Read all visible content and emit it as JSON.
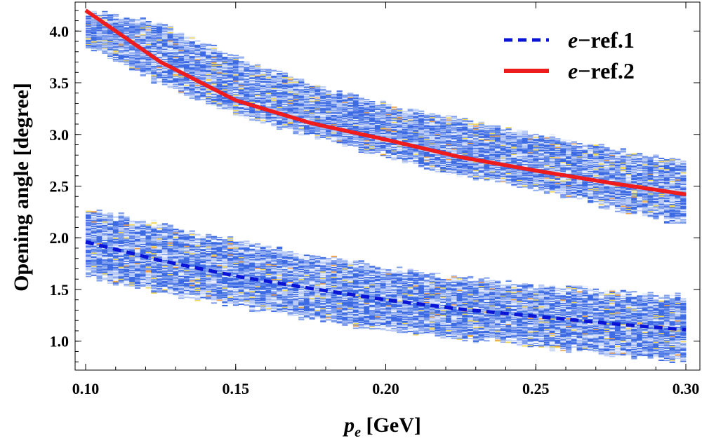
{
  "chart_data": {
    "type": "scatter",
    "title": "",
    "xlabel_main": "p",
    "xlabel_sub": "e",
    "xlabel_unit": " [GeV]",
    "ylabel": "Opening angle [degree]",
    "xlim": [
      0.1,
      0.3
    ],
    "ylim": [
      0.72,
      4.28
    ],
    "x_ticks": [
      0.1,
      0.15,
      0.2,
      0.25,
      0.3
    ],
    "x_tick_labels": [
      "0.10",
      "0.15",
      "0.20",
      "0.25",
      "0.30"
    ],
    "y_ticks": [
      1.0,
      1.5,
      2.0,
      2.5,
      3.0,
      3.5,
      4.0
    ],
    "y_tick_labels": [
      "1.0",
      "1.5",
      "2.0",
      "2.5",
      "3.0",
      "3.5",
      "4.0"
    ],
    "legend_position": "top-right",
    "bands": [
      {
        "name": "band-lower",
        "x": [
          0.1,
          0.125,
          0.15,
          0.175,
          0.2,
          0.225,
          0.25,
          0.275,
          0.3
        ],
        "lower": [
          1.62,
          1.47,
          1.34,
          1.21,
          1.1,
          1.02,
          0.94,
          0.87,
          0.8
        ],
        "upper": [
          2.3,
          2.14,
          1.98,
          1.84,
          1.72,
          1.62,
          1.55,
          1.49,
          1.44
        ]
      },
      {
        "name": "band-upper",
        "x": [
          0.1,
          0.125,
          0.15,
          0.175,
          0.2,
          0.225,
          0.25,
          0.275,
          0.3
        ],
        "lower": [
          3.86,
          3.48,
          3.2,
          2.98,
          2.78,
          2.6,
          2.45,
          2.29,
          2.12
        ],
        "upper": [
          4.2,
          4.08,
          3.75,
          3.5,
          3.3,
          3.15,
          3.01,
          2.87,
          2.74
        ]
      }
    ],
    "series": [
      {
        "name": "e−ref.1",
        "legend_prefix": "e",
        "legend_suffix": "−ref.1",
        "style": "dashed",
        "color": "#0a14d6",
        "x": [
          0.1,
          0.125,
          0.15,
          0.175,
          0.2,
          0.225,
          0.25,
          0.275,
          0.3
        ],
        "y": [
          1.96,
          1.78,
          1.63,
          1.51,
          1.4,
          1.31,
          1.24,
          1.17,
          1.11
        ]
      },
      {
        "name": "e−ref.2",
        "legend_prefix": "e",
        "legend_suffix": "−ref.2",
        "style": "solid",
        "color": "#ee1c1c",
        "x": [
          0.1,
          0.125,
          0.15,
          0.175,
          0.2,
          0.225,
          0.25,
          0.275,
          0.3
        ],
        "y": [
          4.2,
          3.7,
          3.33,
          3.11,
          2.95,
          2.78,
          2.65,
          2.53,
          2.42
        ]
      }
    ],
    "colors": {
      "cell_main": "#3d6be3",
      "cell_mid": "#7c9cec",
      "cell_light": "#b9cbf5",
      "cell_pale": "#e6edfc",
      "cell_yellow": "#f3d95a",
      "cell_orange": "#eea24a"
    }
  }
}
